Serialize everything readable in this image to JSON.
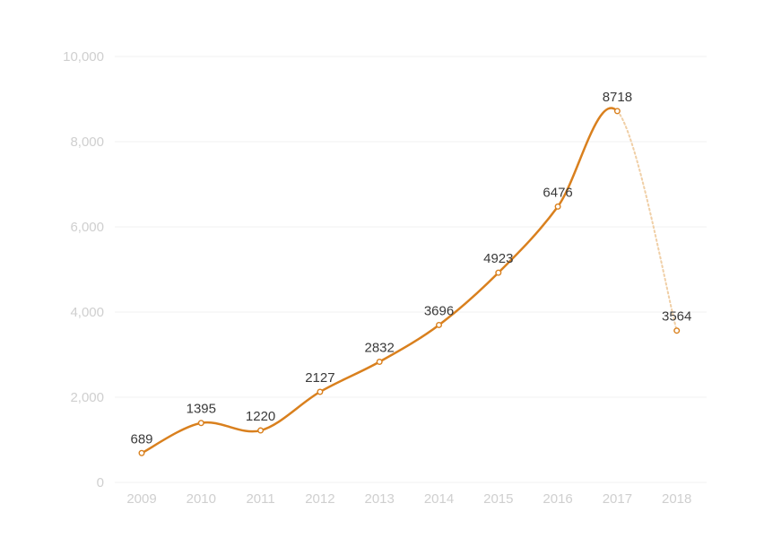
{
  "chart_data": {
    "type": "line",
    "title": "",
    "xlabel": "",
    "ylabel": "",
    "x": [
      "2009",
      "2010",
      "2011",
      "2012",
      "2013",
      "2014",
      "2015",
      "2016",
      "2017",
      "2018"
    ],
    "y_ticks": [
      "0",
      "2,000",
      "4,000",
      "6,000",
      "8,000",
      "10,000"
    ],
    "ylim": [
      0,
      10000
    ],
    "grid": true,
    "legend": "none",
    "series": [
      {
        "values": [
          689,
          1395,
          1220,
          2127,
          2832,
          3696,
          4923,
          6476,
          8718,
          3564
        ],
        "labels": [
          "689",
          "1395",
          "1220",
          "2127",
          "2832",
          "3696",
          "4923",
          "6476",
          "8718",
          "3564"
        ],
        "color": "#d9801e",
        "projected_color": "#f0cfa6",
        "projected_from_index": 8
      }
    ],
    "colors": {
      "line": "#d9801e",
      "projected": "#f0cfa6",
      "gridline": "#f1f1f1",
      "tick_text": "#cfcfcf",
      "label_text": "#3a3a3a"
    }
  }
}
